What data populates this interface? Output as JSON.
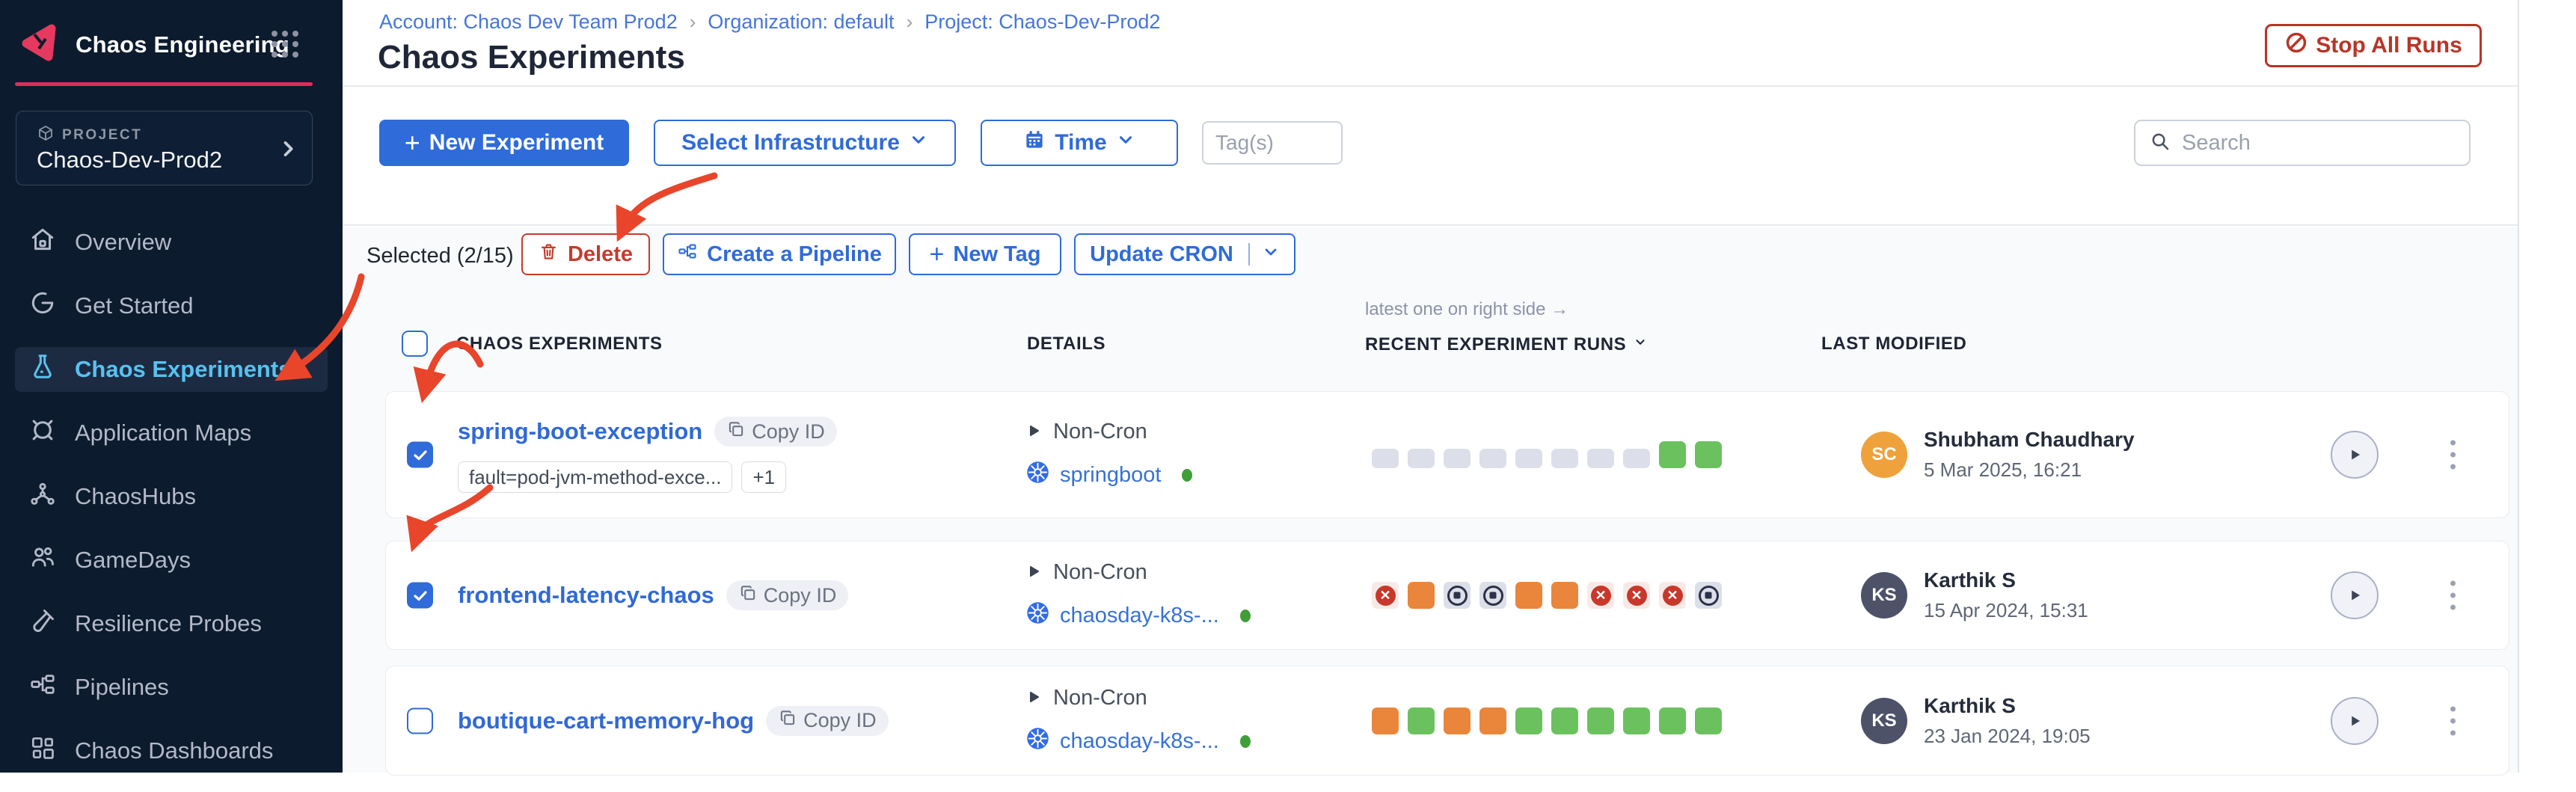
{
  "colors": {
    "accent_blue": "#2f6bd9",
    "brand_pink": "#e22a5d",
    "danger_red": "#c53b2b",
    "success_green": "#6bc15e",
    "running_orange": "#e9863c",
    "failed_red": "#c8382a",
    "pending_gray": "#dcdfe9",
    "active_nav_blue": "#58c2f0",
    "annotation_red": "#e8452b"
  },
  "sidebar": {
    "module_title": "Chaos Engineering",
    "project_label": "PROJECT",
    "project_name": "Chaos-Dev-Prod2",
    "items": [
      {
        "label": "Overview",
        "icon": "home-icon",
        "active": false
      },
      {
        "label": "Get Started",
        "icon": "get-started-icon",
        "active": false
      },
      {
        "label": "Chaos Experiments",
        "icon": "flask-icon",
        "active": true
      },
      {
        "label": "Application Maps",
        "icon": "application-maps-icon",
        "active": false
      },
      {
        "label": "ChaosHubs",
        "icon": "chaoshubs-icon",
        "active": false
      },
      {
        "label": "GameDays",
        "icon": "gamedays-icon",
        "active": false
      },
      {
        "label": "Resilience Probes",
        "icon": "probe-icon",
        "active": false
      },
      {
        "label": "Pipelines",
        "icon": "pipelines-icon",
        "active": false
      },
      {
        "label": "Chaos Dashboards",
        "icon": "dashboards-icon",
        "active": false
      }
    ]
  },
  "header": {
    "breadcrumb": [
      "Account: Chaos Dev Team Prod2",
      "Organization: default",
      "Project: Chaos-Dev-Prod2"
    ],
    "title": "Chaos Experiments",
    "stop_all_label": "Stop All Runs"
  },
  "toolbar": {
    "new_experiment": "New Experiment",
    "select_infrastructure": "Select Infrastructure",
    "time": "Time",
    "tags_placeholder": "Tag(s)",
    "search_placeholder": "Search"
  },
  "bulk": {
    "selected": "Selected (2/15)",
    "delete": "Delete",
    "create_pipeline": "Create a Pipeline",
    "new_tag": "New Tag",
    "update_cron": "Update CRON"
  },
  "table": {
    "headers": {
      "experiments": "CHAOS EXPERIMENTS",
      "details": "DETAILS",
      "runs": "RECENT EXPERIMENT RUNS",
      "modified": "LAST MODIFIED"
    },
    "runs_note": "latest one on right side →",
    "rows": [
      {
        "name": "spring-boot-exception",
        "copy_label": "Copy ID",
        "tags": [
          "fault=pod-jvm-method-exce...",
          "+1"
        ],
        "cron": "Non-Cron",
        "infra": "springboot",
        "checked": true,
        "runs": [
          "pending",
          "pending",
          "pending",
          "pending",
          "pending",
          "pending",
          "pending",
          "pending",
          "passed",
          "passed"
        ],
        "user": {
          "name": "Shubham Chaudhary",
          "date": "5 Mar 2025, 16:21",
          "initials": "SC",
          "color": "#efa13b"
        }
      },
      {
        "name": "frontend-latency-chaos",
        "copy_label": "Copy ID",
        "tags": [],
        "cron": "Non-Cron",
        "infra": "chaosday-k8s-...",
        "checked": true,
        "runs": [
          "failed",
          "running",
          "stopped",
          "stopped",
          "running",
          "running",
          "failed",
          "failed",
          "failed",
          "stopped"
        ],
        "user": {
          "name": "Karthik S",
          "date": "15 Apr 2024, 15:31",
          "initials": "KS",
          "color": "#4e5268"
        }
      },
      {
        "name": "boutique-cart-memory-hog",
        "copy_label": "Copy ID",
        "tags": [],
        "cron": "Non-Cron",
        "infra": "chaosday-k8s-...",
        "checked": false,
        "runs": [
          "running",
          "passed",
          "running",
          "running",
          "passed",
          "passed",
          "passed",
          "passed",
          "passed",
          "passed"
        ],
        "user": {
          "name": "Karthik S",
          "date": "23 Jan 2024, 19:05",
          "initials": "KS",
          "color": "#4e5268"
        }
      }
    ]
  }
}
